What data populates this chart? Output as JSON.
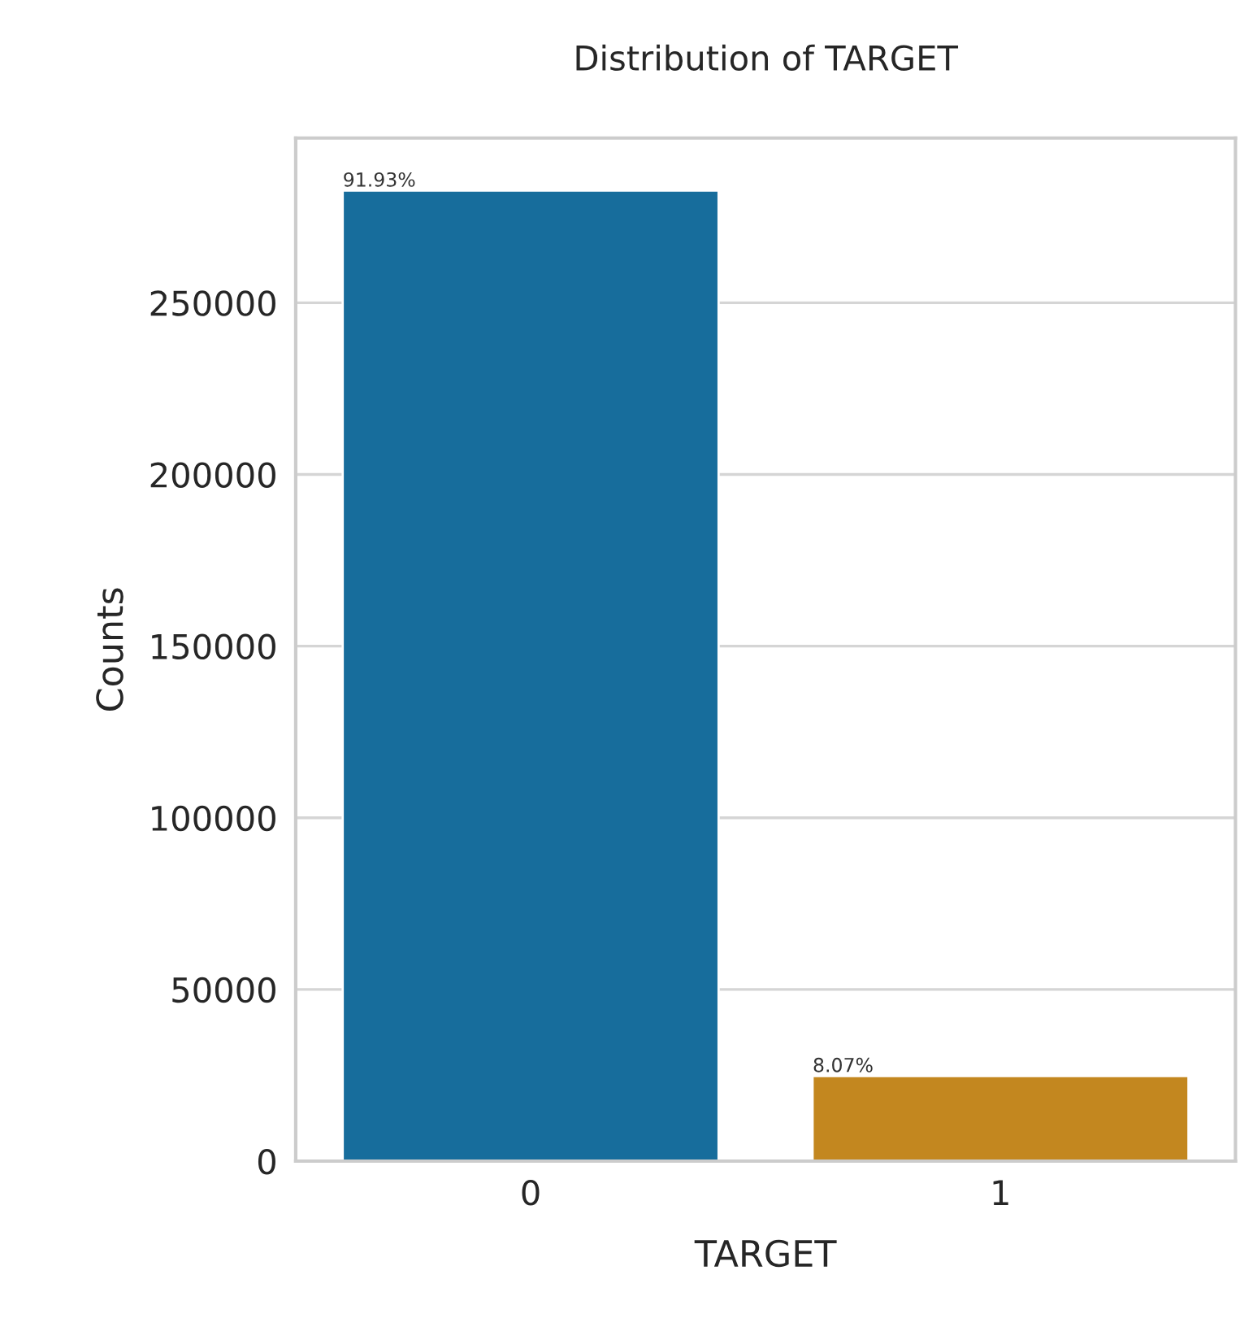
{
  "chart_data": {
    "type": "bar",
    "title": "Distribution of TARGET",
    "xlabel": "TARGET",
    "ylabel": "Counts",
    "categories": [
      "0",
      "1"
    ],
    "values": [
      282700,
      24800
    ],
    "colors": [
      "#176d9c",
      "#c3871f"
    ],
    "annotations": [
      "91.93%",
      "8.07%"
    ],
    "ylim": [
      0,
      298000
    ],
    "yticks": [
      0,
      50000,
      100000,
      150000,
      200000,
      250000
    ],
    "grid": "y",
    "legend": false
  }
}
